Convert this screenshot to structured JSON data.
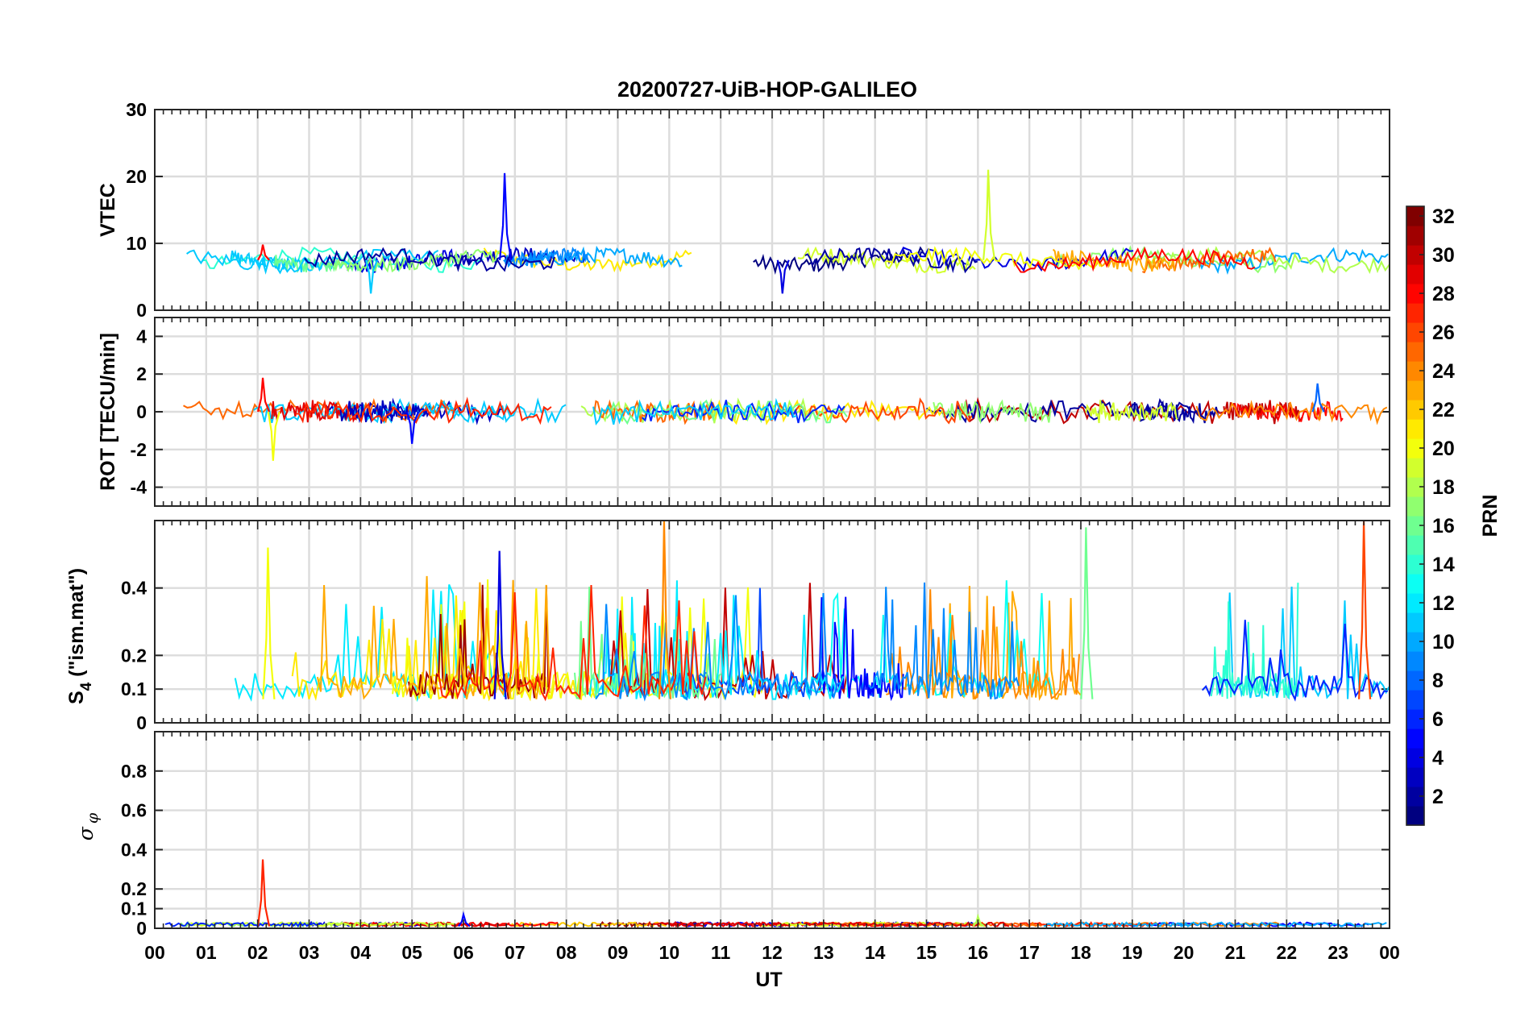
{
  "chart_data": [
    {
      "type": "line",
      "title": "20200727-UiB-HOP-GALILEO",
      "ylabel": "VTEC",
      "ylim": [
        0,
        30
      ],
      "yticks": [
        "0",
        "10",
        "20",
        "30"
      ],
      "baseline": 7.5,
      "spikes": [
        {
          "x": 6.8,
          "y": 20.5,
          "prn": 5
        },
        {
          "x": 12.2,
          "y": 2.5,
          "prn": 4
        },
        {
          "x": 16.2,
          "y": 21.0,
          "prn": 19
        },
        {
          "x": 4.2,
          "y": 2.5,
          "prn": 11
        },
        {
          "x": 2.1,
          "y": 9.8,
          "prn": 28
        }
      ]
    },
    {
      "type": "line",
      "ylabel": "ROT [TECU/min]",
      "ylim": [
        -5,
        5
      ],
      "yticks": [
        "-4",
        "-2",
        "0",
        "2",
        "4"
      ],
      "baseline": 0,
      "spikes": [
        {
          "x": 2.1,
          "y": 1.8,
          "prn": 28
        },
        {
          "x": 2.3,
          "y": -2.6,
          "prn": 20
        },
        {
          "x": 5.0,
          "y": -1.7,
          "prn": 5
        },
        {
          "x": 22.6,
          "y": 1.5,
          "prn": 8
        }
      ]
    },
    {
      "type": "line",
      "ylabel": "S",
      "ylabel_sub": "4",
      "ylabel_suffix": " (\"ism.mat\")",
      "ylim": [
        0,
        0.6
      ],
      "yticks": [
        "0",
        "0.1",
        "0.2",
        "0.4"
      ],
      "baseline": 0.07,
      "spikes": [
        {
          "x": 9.9,
          "y": 0.6,
          "prn": 24
        },
        {
          "x": 23.5,
          "y": 0.6,
          "prn": 26
        },
        {
          "x": 18.1,
          "y": 0.58,
          "prn": 16
        },
        {
          "x": 2.2,
          "y": 0.52,
          "prn": 20
        },
        {
          "x": 6.7,
          "y": 0.51,
          "prn": 4
        }
      ]
    },
    {
      "type": "line",
      "ylabel": "σ",
      "ylabel_sub": "φ",
      "ylim": [
        0,
        1
      ],
      "yticks": [
        "0",
        "0.1",
        "0.2",
        "0.4",
        "0.6",
        "0.8"
      ],
      "baseline": 0.01,
      "spikes": [
        {
          "x": 2.1,
          "y": 0.35,
          "prn": 27
        },
        {
          "x": 6.0,
          "y": 0.07,
          "prn": 5
        },
        {
          "x": 16.0,
          "y": 0.06,
          "prn": 18
        }
      ]
    }
  ],
  "xaxis": {
    "label": "UT",
    "range_hours": [
      0,
      24
    ],
    "ticks": [
      "00",
      "01",
      "02",
      "03",
      "04",
      "05",
      "06",
      "07",
      "08",
      "09",
      "10",
      "11",
      "12",
      "13",
      "14",
      "15",
      "16",
      "17",
      "18",
      "19",
      "20",
      "21",
      "22",
      "23",
      "00"
    ]
  },
  "colorbar": {
    "label": "PRN",
    "range": [
      1,
      32
    ],
    "colormap": "jet",
    "ticks": [
      "2",
      "4",
      "6",
      "8",
      "10",
      "12",
      "14",
      "16",
      "18",
      "20",
      "22",
      "24",
      "26",
      "28",
      "30",
      "32"
    ]
  }
}
